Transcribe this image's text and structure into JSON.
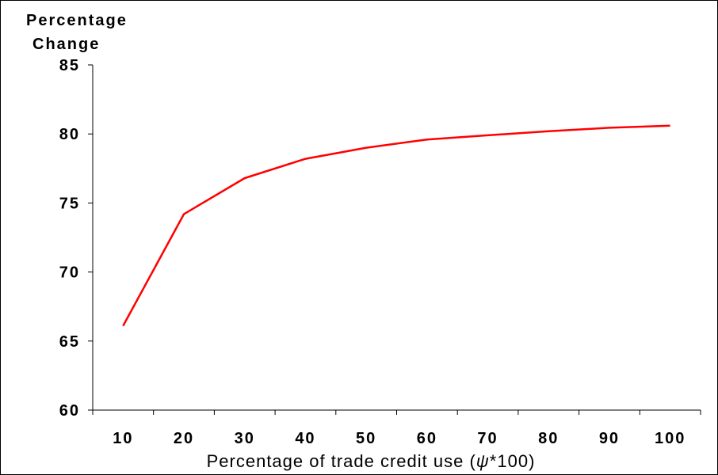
{
  "chart_data": {
    "type": "line",
    "title": "",
    "ylabel_line1": "Percentage",
    "ylabel_line2": "Change",
    "xlabel_text": "Percentage of trade credit use (",
    "xlabel_symbol": "ψ",
    "xlabel_suffix": "*100)",
    "x": [
      10,
      20,
      30,
      40,
      50,
      60,
      70,
      80,
      90,
      100
    ],
    "y_ticks": [
      60,
      65,
      70,
      75,
      80,
      85
    ],
    "ylim": [
      60,
      85
    ],
    "grid": false,
    "series": [
      {
        "color": "#ff0000",
        "values": [
          66.1,
          74.2,
          76.8,
          78.2,
          79.0,
          79.6,
          79.9,
          80.2,
          80.45,
          80.6
        ]
      }
    ]
  }
}
